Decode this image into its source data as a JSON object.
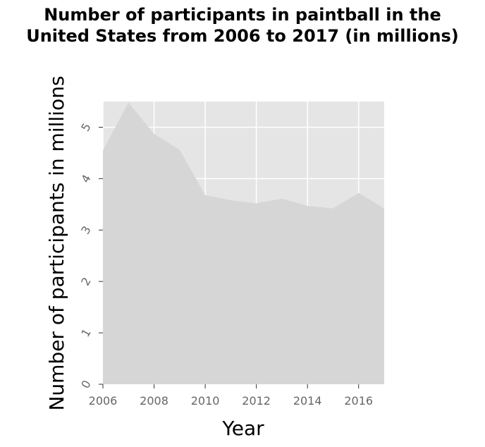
{
  "chart_data": {
    "type": "area",
    "title": "Number of participants in paintball in the United States from 2006 to 2017 (in millions)",
    "title_lines": [
      "Number of participants in paintball in the",
      "United States from 2006 to 2017 (in millions)"
    ],
    "xlabel": "Year",
    "ylabel": "Number of participants in millions",
    "x": [
      2006,
      2007,
      2008,
      2009,
      2010,
      2011,
      2012,
      2013,
      2014,
      2015,
      2016,
      2017
    ],
    "values": [
      4.55,
      5.48,
      4.87,
      4.56,
      3.68,
      3.58,
      3.52,
      3.61,
      3.47,
      3.42,
      3.72,
      3.42
    ],
    "xlim": [
      2006,
      2017
    ],
    "ylim": [
      0,
      5.5
    ],
    "xticks": [
      2006,
      2008,
      2010,
      2012,
      2014,
      2016
    ],
    "xtick_labels": [
      "2006",
      "2008",
      "2010",
      "2012",
      "2014",
      "2016"
    ],
    "yticks": [
      0,
      1,
      2,
      3,
      4,
      5
    ],
    "ytick_labels": [
      "0",
      "1",
      "2",
      "3",
      "4",
      "5"
    ],
    "grid": true,
    "colors": {
      "panel": "#e5e5e5",
      "area": "#d6d6d6",
      "grid": "#ffffff",
      "tick_text": "#666666"
    }
  }
}
